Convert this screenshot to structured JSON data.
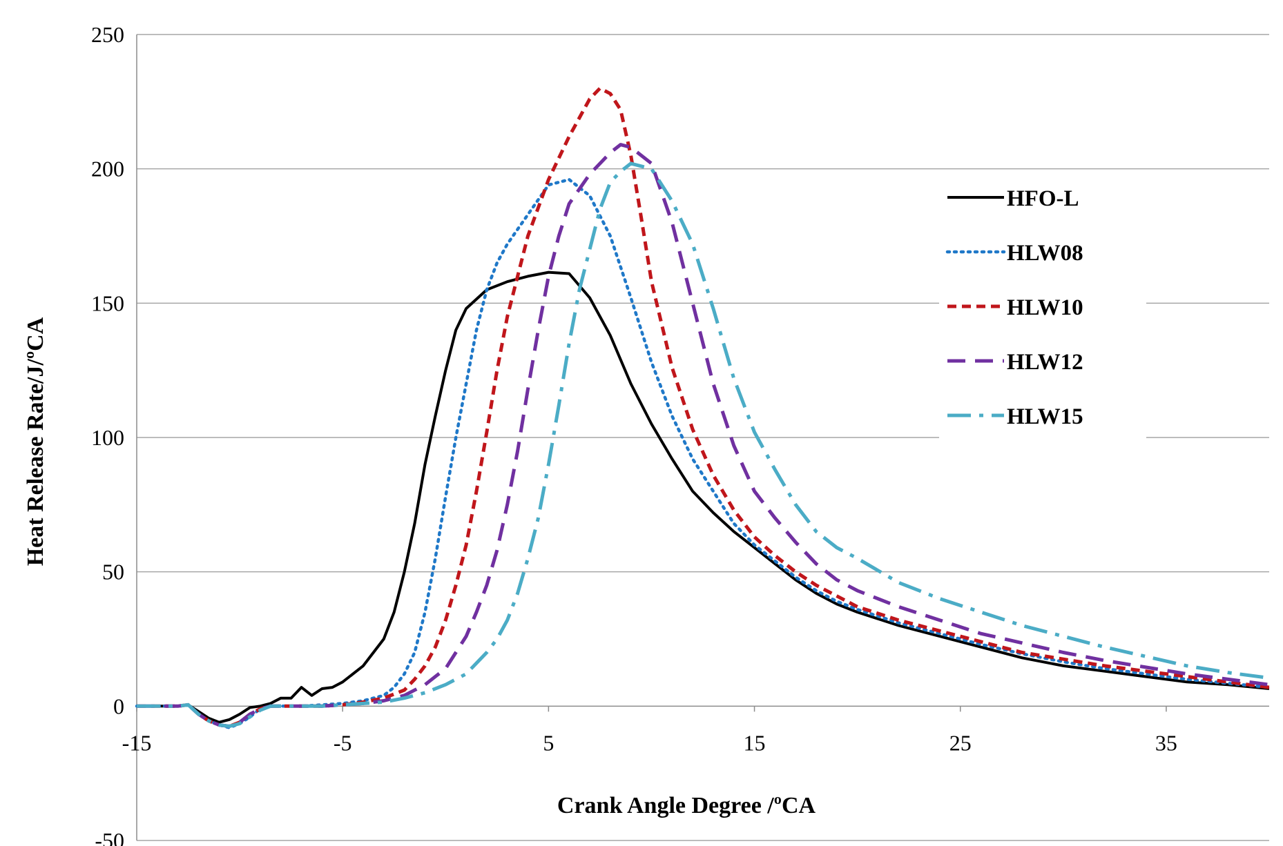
{
  "chart_data": {
    "type": "line",
    "title": "",
    "xlabel": "Crank Angle Degree /ºCA",
    "ylabel": "Heat Release Rate/J/ºCA",
    "xlim": [
      -15,
      40
    ],
    "ylim": [
      -50,
      250
    ],
    "x_ticks": [
      "-15",
      "-5",
      "5",
      "15",
      "25",
      "35"
    ],
    "y_ticks": [
      "-50",
      "0",
      "50",
      "100",
      "150",
      "200",
      "250"
    ],
    "grid": "horizontal",
    "legend_position": "right",
    "series": [
      {
        "name": "HFO-L",
        "color": "#000000",
        "style": "solid",
        "points": [
          [
            -15,
            0
          ],
          [
            -13,
            0
          ],
          [
            -12.5,
            0.5
          ],
          [
            -12,
            -2
          ],
          [
            -11.5,
            -4.5
          ],
          [
            -11,
            -6
          ],
          [
            -10.5,
            -5
          ],
          [
            -10,
            -3
          ],
          [
            -9.5,
            -0.5
          ],
          [
            -9,
            0
          ],
          [
            -8.5,
            1
          ],
          [
            -8,
            3
          ],
          [
            -7.5,
            3
          ],
          [
            -7,
            7
          ],
          [
            -6.5,
            4
          ],
          [
            -6,
            6.5
          ],
          [
            -5.5,
            7
          ],
          [
            -5,
            9
          ],
          [
            -4,
            15
          ],
          [
            -3,
            25
          ],
          [
            -2.5,
            35
          ],
          [
            -2,
            50
          ],
          [
            -1.5,
            68
          ],
          [
            -1,
            90
          ],
          [
            -0.5,
            108
          ],
          [
            0,
            125
          ],
          [
            0.5,
            140
          ],
          [
            1,
            148
          ],
          [
            2,
            155
          ],
          [
            3,
            158
          ],
          [
            4,
            160
          ],
          [
            5,
            161.5
          ],
          [
            6,
            161
          ],
          [
            7,
            152
          ],
          [
            8,
            138
          ],
          [
            9,
            120
          ],
          [
            10,
            105
          ],
          [
            11,
            92
          ],
          [
            12,
            80
          ],
          [
            13,
            72
          ],
          [
            14,
            65
          ],
          [
            15,
            59
          ],
          [
            16,
            53
          ],
          [
            17,
            47
          ],
          [
            18,
            42
          ],
          [
            19,
            38
          ],
          [
            20,
            35
          ],
          [
            22,
            30
          ],
          [
            24,
            26
          ],
          [
            26,
            22
          ],
          [
            28,
            18
          ],
          [
            30,
            15
          ],
          [
            32,
            13
          ],
          [
            34,
            11
          ],
          [
            36,
            9
          ],
          [
            38,
            8
          ],
          [
            40,
            6.5
          ]
        ]
      },
      {
        "name": "HLW08",
        "color": "#1f78c8",
        "style": "dotted",
        "points": [
          [
            -15,
            0
          ],
          [
            -13,
            0
          ],
          [
            -12.5,
            0.5
          ],
          [
            -12,
            -3
          ],
          [
            -11.5,
            -5.5
          ],
          [
            -11,
            -7
          ],
          [
            -10.5,
            -8
          ],
          [
            -10,
            -6.5
          ],
          [
            -9.5,
            -4
          ],
          [
            -9,
            -1
          ],
          [
            -8.5,
            0
          ],
          [
            -8,
            0
          ],
          [
            -7,
            0
          ],
          [
            -6,
            0.5
          ],
          [
            -5,
            1
          ],
          [
            -4,
            2
          ],
          [
            -3,
            4
          ],
          [
            -2.5,
            7
          ],
          [
            -2,
            12
          ],
          [
            -1.5,
            20
          ],
          [
            -1,
            35
          ],
          [
            -0.5,
            55
          ],
          [
            0,
            78
          ],
          [
            0.5,
            100
          ],
          [
            1,
            120
          ],
          [
            1.5,
            140
          ],
          [
            2,
            155
          ],
          [
            2.5,
            165
          ],
          [
            3,
            172
          ],
          [
            4,
            183
          ],
          [
            5,
            194
          ],
          [
            6,
            196
          ],
          [
            7,
            190
          ],
          [
            8,
            175
          ],
          [
            9,
            152
          ],
          [
            10,
            128
          ],
          [
            11,
            108
          ],
          [
            12,
            92
          ],
          [
            13,
            80
          ],
          [
            14,
            68
          ],
          [
            15,
            60
          ],
          [
            16,
            54
          ],
          [
            17,
            48
          ],
          [
            18,
            43
          ],
          [
            19,
            39
          ],
          [
            20,
            36
          ],
          [
            22,
            31
          ],
          [
            24,
            27
          ],
          [
            26,
            23
          ],
          [
            28,
            19.5
          ],
          [
            30,
            16.5
          ],
          [
            32,
            14
          ],
          [
            34,
            12
          ],
          [
            36,
            10
          ],
          [
            38,
            8.5
          ],
          [
            40,
            7
          ]
        ]
      },
      {
        "name": "HLW10",
        "color": "#c0161b",
        "style": "dashed",
        "points": [
          [
            -15,
            0
          ],
          [
            -13,
            0
          ],
          [
            -12.5,
            0.5
          ],
          [
            -12,
            -3
          ],
          [
            -11.5,
            -5.5
          ],
          [
            -11,
            -7
          ],
          [
            -10.5,
            -7.5
          ],
          [
            -10,
            -6
          ],
          [
            -9.5,
            -3
          ],
          [
            -9,
            -1
          ],
          [
            -8.5,
            0
          ],
          [
            -8,
            0
          ],
          [
            -7,
            0
          ],
          [
            -6,
            0
          ],
          [
            -5,
            0.5
          ],
          [
            -4,
            1.5
          ],
          [
            -3,
            3
          ],
          [
            -2,
            6
          ],
          [
            -1.5,
            10
          ],
          [
            -1,
            15
          ],
          [
            -0.5,
            22
          ],
          [
            0,
            32
          ],
          [
            0.5,
            45
          ],
          [
            1,
            60
          ],
          [
            1.5,
            80
          ],
          [
            2,
            102
          ],
          [
            2.5,
            125
          ],
          [
            3,
            145
          ],
          [
            3.5,
            160
          ],
          [
            4,
            175
          ],
          [
            5,
            196
          ],
          [
            6,
            212
          ],
          [
            7,
            226
          ],
          [
            7.5,
            230
          ],
          [
            8,
            228
          ],
          [
            8.5,
            222
          ],
          [
            9,
            205
          ],
          [
            9.5,
            182
          ],
          [
            10,
            158
          ],
          [
            11,
            126
          ],
          [
            12,
            103
          ],
          [
            13,
            86
          ],
          [
            14,
            73
          ],
          [
            15,
            63
          ],
          [
            16,
            56
          ],
          [
            17,
            50
          ],
          [
            18,
            45
          ],
          [
            19,
            41
          ],
          [
            20,
            37
          ],
          [
            22,
            32
          ],
          [
            24,
            28
          ],
          [
            26,
            24
          ],
          [
            28,
            20
          ],
          [
            30,
            17.5
          ],
          [
            32,
            15
          ],
          [
            34,
            13
          ],
          [
            36,
            11
          ],
          [
            38,
            9
          ],
          [
            40,
            7
          ]
        ]
      },
      {
        "name": "HLW12",
        "color": "#7030a0",
        "style": "long-dash",
        "points": [
          [
            -15,
            0
          ],
          [
            -13,
            0
          ],
          [
            -12.5,
            0.5
          ],
          [
            -12,
            -3
          ],
          [
            -11.5,
            -5.5
          ],
          [
            -11,
            -7
          ],
          [
            -10.5,
            -7.5
          ],
          [
            -10,
            -6
          ],
          [
            -9.5,
            -3
          ],
          [
            -9,
            -1
          ],
          [
            -8.5,
            0
          ],
          [
            -8,
            0
          ],
          [
            -7,
            0
          ],
          [
            -6,
            0
          ],
          [
            -5,
            0.5
          ],
          [
            -4,
            1
          ],
          [
            -3,
            2
          ],
          [
            -2,
            4
          ],
          [
            -1,
            8
          ],
          [
            0,
            14
          ],
          [
            0.5,
            20
          ],
          [
            1,
            26
          ],
          [
            1.5,
            35
          ],
          [
            2,
            45
          ],
          [
            2.5,
            58
          ],
          [
            3,
            75
          ],
          [
            3.5,
            95
          ],
          [
            4,
            118
          ],
          [
            4.5,
            140
          ],
          [
            5,
            160
          ],
          [
            5.5,
            175
          ],
          [
            6,
            187
          ],
          [
            7,
            198
          ],
          [
            8,
            206
          ],
          [
            8.5,
            209
          ],
          [
            9,
            208
          ],
          [
            10,
            202
          ],
          [
            11,
            180
          ],
          [
            12,
            150
          ],
          [
            13,
            120
          ],
          [
            14,
            97
          ],
          [
            15,
            80
          ],
          [
            16,
            70
          ],
          [
            17,
            61
          ],
          [
            18,
            53
          ],
          [
            19,
            47
          ],
          [
            20,
            43
          ],
          [
            22,
            37
          ],
          [
            24,
            32
          ],
          [
            26,
            27
          ],
          [
            28,
            23.5
          ],
          [
            30,
            20
          ],
          [
            32,
            17
          ],
          [
            34,
            14.5
          ],
          [
            36,
            12
          ],
          [
            38,
            10
          ],
          [
            40,
            8
          ]
        ]
      },
      {
        "name": "HLW15",
        "color": "#4bacc6",
        "style": "dash-dot",
        "points": [
          [
            -15,
            0
          ],
          [
            -13,
            0
          ],
          [
            -12.5,
            0.5
          ],
          [
            -12,
            -3
          ],
          [
            -11.5,
            -5.5
          ],
          [
            -11,
            -7
          ],
          [
            -10.5,
            -7.5
          ],
          [
            -10,
            -6.5
          ],
          [
            -9.5,
            -4
          ],
          [
            -9,
            -1.5
          ],
          [
            -8.5,
            0
          ],
          [
            -8,
            0
          ],
          [
            -7,
            0
          ],
          [
            -6,
            0
          ],
          [
            -5,
            0.5
          ],
          [
            -4,
            1
          ],
          [
            -3,
            1.5
          ],
          [
            -2,
            3
          ],
          [
            -1,
            5
          ],
          [
            0,
            8
          ],
          [
            1,
            12
          ],
          [
            1.5,
            16
          ],
          [
            2,
            20
          ],
          [
            2.5,
            25
          ],
          [
            3,
            32
          ],
          [
            3.5,
            42
          ],
          [
            4,
            55
          ],
          [
            4.5,
            70
          ],
          [
            5,
            90
          ],
          [
            5.5,
            112
          ],
          [
            6,
            135
          ],
          [
            6.5,
            155
          ],
          [
            7,
            170
          ],
          [
            7.5,
            185
          ],
          [
            8,
            195
          ],
          [
            8.5,
            199
          ],
          [
            9,
            202
          ],
          [
            10,
            200
          ],
          [
            11,
            188
          ],
          [
            12,
            172
          ],
          [
            13,
            148
          ],
          [
            14,
            122
          ],
          [
            15,
            102
          ],
          [
            16,
            88
          ],
          [
            17,
            75
          ],
          [
            18,
            65
          ],
          [
            19,
            59
          ],
          [
            20,
            55
          ],
          [
            22,
            46
          ],
          [
            24,
            40
          ],
          [
            26,
            35
          ],
          [
            28,
            30
          ],
          [
            30,
            26
          ],
          [
            32,
            22
          ],
          [
            34,
            18.5
          ],
          [
            36,
            15
          ],
          [
            38,
            12.5
          ],
          [
            40,
            10.5
          ]
        ]
      }
    ]
  }
}
